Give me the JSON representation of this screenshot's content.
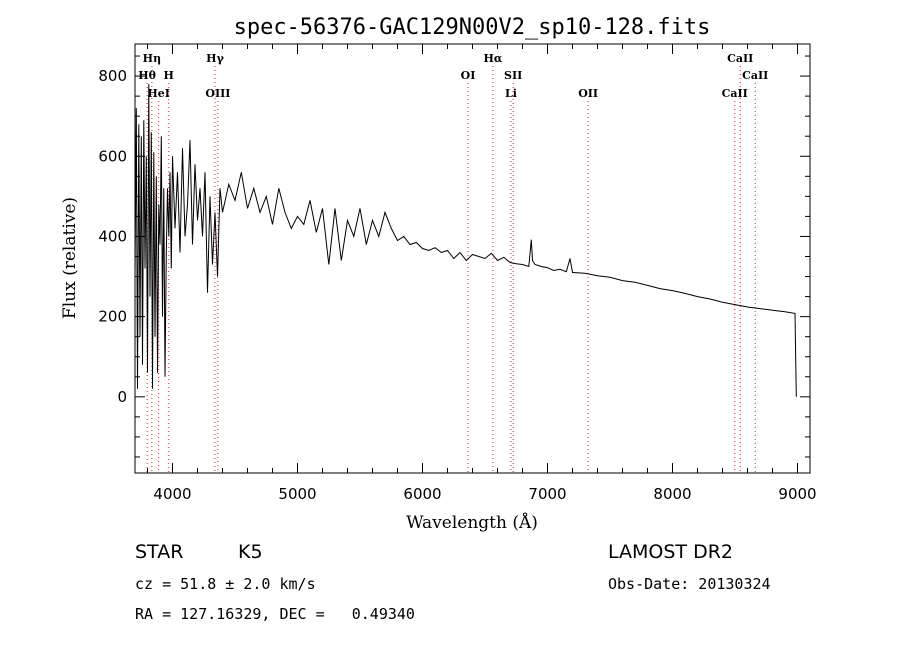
{
  "chart_data": {
    "type": "line",
    "title": "spec-56376-GAC129N00V2_sp10-128.fits",
    "xlabel": "Wavelength (Å)",
    "ylabel": "Flux (relative)",
    "xlim": [
      3700,
      9100
    ],
    "ylim": [
      -190,
      880
    ],
    "x_ticks": [
      4000,
      5000,
      6000,
      7000,
      8000,
      9000
    ],
    "y_ticks": [
      0,
      200,
      400,
      600,
      800
    ],
    "series": [
      {
        "points": [
          [
            3700,
            300
          ],
          [
            3710,
            720
          ],
          [
            3720,
            20
          ],
          [
            3730,
            680
          ],
          [
            3740,
            150
          ],
          [
            3750,
            650
          ],
          [
            3760,
            80
          ],
          [
            3770,
            690
          ],
          [
            3780,
            320
          ],
          [
            3790,
            600
          ],
          [
            3800,
            60
          ],
          [
            3810,
            780
          ],
          [
            3820,
            250
          ],
          [
            3830,
            660
          ],
          [
            3840,
            20
          ],
          [
            3850,
            610
          ],
          [
            3860,
            150
          ],
          [
            3870,
            550
          ],
          [
            3880,
            60
          ],
          [
            3890,
            480
          ],
          [
            3900,
            380
          ],
          [
            3910,
            650
          ],
          [
            3920,
            200
          ],
          [
            3930,
            520
          ],
          [
            3940,
            50
          ],
          [
            3950,
            360
          ],
          [
            3960,
            520
          ],
          [
            3970,
            400
          ],
          [
            3980,
            560
          ],
          [
            3990,
            320
          ],
          [
            4000,
            600
          ],
          [
            4020,
            420
          ],
          [
            4040,
            560
          ],
          [
            4060,
            360
          ],
          [
            4080,
            620
          ],
          [
            4100,
            400
          ],
          [
            4120,
            480
          ],
          [
            4140,
            640
          ],
          [
            4160,
            380
          ],
          [
            4180,
            580
          ],
          [
            4200,
            440
          ],
          [
            4220,
            520
          ],
          [
            4240,
            400
          ],
          [
            4260,
            560
          ],
          [
            4280,
            260
          ],
          [
            4300,
            500
          ],
          [
            4320,
            330
          ],
          [
            4340,
            460
          ],
          [
            4360,
            300
          ],
          [
            4380,
            520
          ],
          [
            4400,
            460
          ],
          [
            4450,
            530
          ],
          [
            4500,
            490
          ],
          [
            4550,
            560
          ],
          [
            4600,
            470
          ],
          [
            4650,
            520
          ],
          [
            4700,
            460
          ],
          [
            4750,
            500
          ],
          [
            4800,
            430
          ],
          [
            4850,
            520
          ],
          [
            4900,
            460
          ],
          [
            4950,
            420
          ],
          [
            5000,
            450
          ],
          [
            5050,
            430
          ],
          [
            5100,
            490
          ],
          [
            5150,
            410
          ],
          [
            5200,
            470
          ],
          [
            5250,
            330
          ],
          [
            5300,
            470
          ],
          [
            5350,
            340
          ],
          [
            5400,
            440
          ],
          [
            5450,
            400
          ],
          [
            5500,
            470
          ],
          [
            5550,
            380
          ],
          [
            5600,
            440
          ],
          [
            5650,
            400
          ],
          [
            5700,
            460
          ],
          [
            5750,
            420
          ],
          [
            5800,
            390
          ],
          [
            5850,
            400
          ],
          [
            5900,
            380
          ],
          [
            5950,
            385
          ],
          [
            6000,
            370
          ],
          [
            6050,
            365
          ],
          [
            6100,
            372
          ],
          [
            6150,
            360
          ],
          [
            6200,
            365
          ],
          [
            6250,
            345
          ],
          [
            6300,
            360
          ],
          [
            6350,
            340
          ],
          [
            6400,
            355
          ],
          [
            6450,
            350
          ],
          [
            6500,
            345
          ],
          [
            6550,
            358
          ],
          [
            6600,
            340
          ],
          [
            6650,
            348
          ],
          [
            6700,
            335
          ],
          [
            6750,
            332
          ],
          [
            6800,
            330
          ],
          [
            6850,
            325
          ],
          [
            6870,
            392
          ],
          [
            6880,
            340
          ],
          [
            6900,
            330
          ],
          [
            6950,
            325
          ],
          [
            7000,
            322
          ],
          [
            7050,
            315
          ],
          [
            7100,
            318
          ],
          [
            7150,
            312
          ],
          [
            7180,
            345
          ],
          [
            7200,
            310
          ],
          [
            7300,
            308
          ],
          [
            7400,
            302
          ],
          [
            7500,
            298
          ],
          [
            7600,
            290
          ],
          [
            7700,
            286
          ],
          [
            7800,
            278
          ],
          [
            7900,
            270
          ],
          [
            8000,
            265
          ],
          [
            8100,
            258
          ],
          [
            8200,
            250
          ],
          [
            8300,
            244
          ],
          [
            8400,
            236
          ],
          [
            8500,
            230
          ],
          [
            8600,
            224
          ],
          [
            8700,
            220
          ],
          [
            8800,
            216
          ],
          [
            8900,
            212
          ],
          [
            8980,
            208
          ],
          [
            8990,
            0
          ]
        ]
      }
    ],
    "lines": [
      {
        "label": "Hη",
        "x": 3835,
        "row": 0
      },
      {
        "label": "Hθ",
        "x": 3797,
        "row": 1
      },
      {
        "label": "H",
        "x": 3970,
        "row": 1
      },
      {
        "label": "HeI",
        "x": 3889,
        "row": 2
      },
      {
        "label": "Hγ",
        "x": 4340,
        "row": 0
      },
      {
        "label": "OIII",
        "x": 4363,
        "row": 2
      },
      {
        "label": "Hα",
        "x": 6563,
        "row": 0
      },
      {
        "label": "OI",
        "x": 6364,
        "row": 1
      },
      {
        "label": "SII",
        "x": 6725,
        "row": 1
      },
      {
        "label": "Li",
        "x": 6708,
        "row": 2
      },
      {
        "label": "OII",
        "x": 7325,
        "row": 2
      },
      {
        "label": "CaII",
        "x": 8542,
        "row": 0
      },
      {
        "label": "CaII",
        "x": 8662,
        "row": 1
      },
      {
        "label": "CaII",
        "x": 8498,
        "row": 2
      }
    ],
    "grid": false
  },
  "info": {
    "object_type": "STAR",
    "subclass": "K5",
    "survey": "LAMOST DR2",
    "cz": "cz = 51.8 ± 2.0 km/s",
    "obs_date": "Obs-Date: 20130324",
    "coords": "RA = 127.16329, DEC =   0.49340"
  }
}
